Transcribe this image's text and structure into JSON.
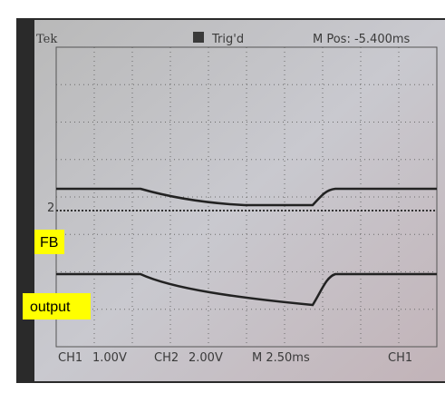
{
  "header": {
    "brand": "Tek",
    "trigger": "Trig'd",
    "position": "M Pos: -5.400ms"
  },
  "markers": {
    "channel2": "2"
  },
  "labels": {
    "fb": "FB",
    "output": "output"
  },
  "footer": {
    "ch1": "CH1",
    "ch1_scale": "1.00V",
    "ch2": "CH2",
    "ch2_scale": "2.00V",
    "timebase": "M 2.50ms",
    "trigger_source": "CH1"
  }
}
